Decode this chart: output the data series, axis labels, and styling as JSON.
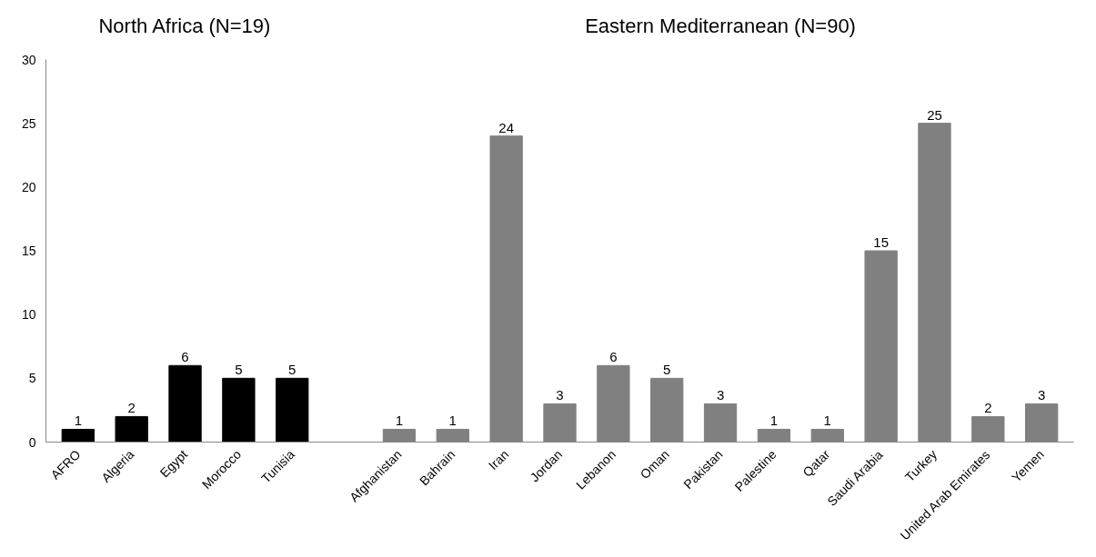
{
  "chart_data": {
    "type": "bar",
    "categories": [
      "AFRO",
      "Algeria",
      "Egypt",
      "Morocco",
      "Tunisia",
      null,
      "Afghanistan",
      "Bahrain",
      "Iran",
      "Jordan",
      "Lebanon",
      "Oman",
      "Pakistan",
      "Palestine",
      "Qatar",
      "Saudi Arabia",
      "Turkey",
      "United Arab Emirates",
      "Yemen"
    ],
    "series": [
      {
        "color": "#000000",
        "values": [
          1,
          2,
          6,
          5,
          5,
          null,
          null,
          null,
          null,
          null,
          null,
          null,
          null,
          null,
          null,
          null,
          null,
          null,
          null
        ]
      },
      {
        "color": "#808080",
        "values": [
          null,
          null,
          null,
          null,
          null,
          null,
          1,
          1,
          24,
          3,
          6,
          5,
          3,
          1,
          1,
          15,
          25,
          2,
          3
        ]
      }
    ],
    "ylim": [
      0,
      30
    ],
    "yticks": [
      0,
      5,
      10,
      15,
      20,
      25,
      30
    ],
    "grid": false,
    "data_labels": true,
    "annotations": [
      "North Africa (N=19)",
      "Eastern Mediterranean (N=90)"
    ]
  }
}
